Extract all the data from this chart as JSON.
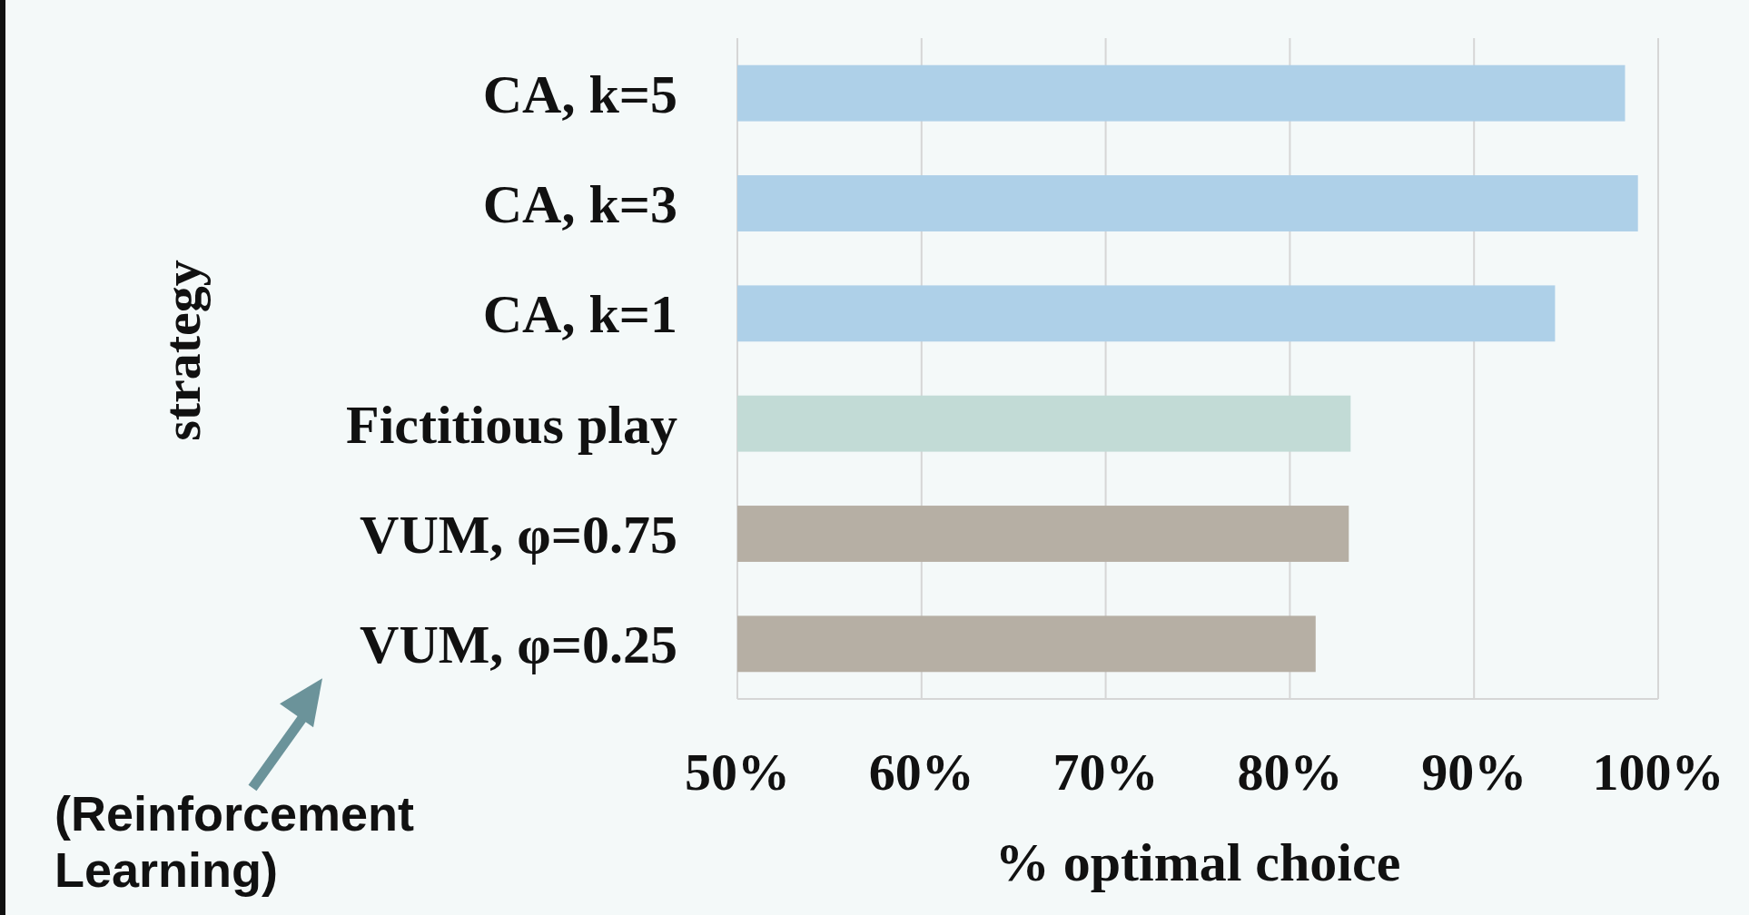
{
  "chart_data": {
    "type": "bar",
    "orientation": "horizontal",
    "ylabel": "strategy",
    "xlabel": "% optimal choice",
    "categories": [
      "CA, k=5",
      "CA, k=3",
      "CA, k=1",
      "Fictitious play",
      "VUM, φ=0.75",
      "VUM, φ=0.25"
    ],
    "values": [
      98.2,
      98.9,
      94.4,
      83.3,
      83.2,
      81.4
    ],
    "colors": [
      "#aed0e8",
      "#aed0e8",
      "#aed0e8",
      "#c2dbd6",
      "#b6afa4",
      "#b6afa4"
    ],
    "xlim": [
      50,
      100
    ],
    "xticks": [
      {
        "value": 50,
        "label": "50%"
      },
      {
        "value": 60,
        "label": "60%"
      },
      {
        "value": 70,
        "label": "70%"
      },
      {
        "value": 80,
        "label": "80%"
      },
      {
        "value": 90,
        "label": "90%"
      },
      {
        "value": 100,
        "label": "100%"
      }
    ],
    "grid": "x",
    "annotations": [
      "(Reinforcement Learning)"
    ]
  }
}
